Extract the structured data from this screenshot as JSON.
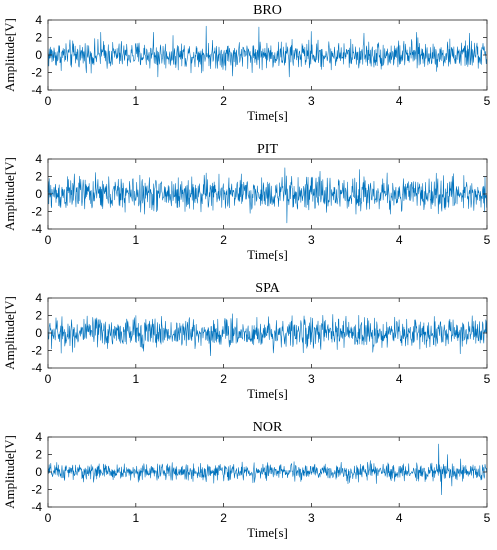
{
  "chart_data": [
    {
      "type": "line",
      "title": "BRO",
      "xlabel": "Time[s]",
      "ylabel": "Amplitude[V]",
      "xlim": [
        0,
        5
      ],
      "ylim": [
        -4,
        4
      ],
      "xticks": [
        0,
        1,
        2,
        3,
        4,
        5
      ],
      "yticks": [
        -4,
        -2,
        0,
        2,
        4
      ],
      "grid": false,
      "color": "#0072BD",
      "noise_amplitude": 0.9,
      "spikes": [
        {
          "x": 0.6,
          "y": 2.6
        },
        {
          "x": 1.2,
          "y": 2.6
        },
        {
          "x": 1.25,
          "y": -2.5
        },
        {
          "x": 1.8,
          "y": 3.3
        },
        {
          "x": 2.1,
          "y": -2.4
        },
        {
          "x": 2.4,
          "y": 3.2
        },
        {
          "x": 2.75,
          "y": -2.5
        },
        {
          "x": 3.0,
          "y": 2.7
        },
        {
          "x": 3.6,
          "y": 2.5
        },
        {
          "x": 4.2,
          "y": 2.6
        },
        {
          "x": 4.8,
          "y": 2.5
        }
      ]
    },
    {
      "type": "line",
      "title": "PIT",
      "xlabel": "Time[s]",
      "ylabel": "Amplitude[V]",
      "xlim": [
        0,
        5
      ],
      "ylim": [
        -4,
        4
      ],
      "xticks": [
        0,
        1,
        2,
        3,
        4,
        5
      ],
      "yticks": [
        -4,
        -2,
        0,
        2,
        4
      ],
      "grid": false,
      "color": "#0072BD",
      "noise_amplitude": 1.1,
      "spikes": [
        {
          "x": 0.3,
          "y": 2.3
        },
        {
          "x": 1.1,
          "y": -2.3
        },
        {
          "x": 1.8,
          "y": 2.4
        },
        {
          "x": 2.3,
          "y": -2.2
        },
        {
          "x": 2.7,
          "y": 3.0
        },
        {
          "x": 2.72,
          "y": -3.3
        },
        {
          "x": 3.1,
          "y": 2.6
        },
        {
          "x": 3.55,
          "y": 2.8
        },
        {
          "x": 3.9,
          "y": -2.3
        }
      ]
    },
    {
      "type": "line",
      "title": "SPA",
      "xlabel": "Time[s]",
      "ylabel": "Amplitude[V]",
      "xlim": [
        0,
        5
      ],
      "ylim": [
        -4,
        4
      ],
      "xticks": [
        0,
        1,
        2,
        3,
        4,
        5
      ],
      "yticks": [
        -4,
        -2,
        0,
        2,
        4
      ],
      "grid": false,
      "color": "#0072BD",
      "noise_amplitude": 1.0,
      "spikes": [
        {
          "x": 0.15,
          "y": -2.3
        },
        {
          "x": 1.0,
          "y": 2.0
        },
        {
          "x": 1.85,
          "y": -2.6
        },
        {
          "x": 2.1,
          "y": 2.2
        },
        {
          "x": 3.7,
          "y": -2.2
        },
        {
          "x": 4.4,
          "y": 1.9
        }
      ]
    },
    {
      "type": "line",
      "title": "NOR",
      "xlabel": "Time[s]",
      "ylabel": "Amplitude[V]",
      "xlim": [
        0,
        5
      ],
      "ylim": [
        -4,
        4
      ],
      "xticks": [
        0,
        1,
        2,
        3,
        4,
        5
      ],
      "yticks": [
        -4,
        -2,
        0,
        2,
        4
      ],
      "grid": false,
      "color": "#0072BD",
      "noise_amplitude": 0.55,
      "spikes": [
        {
          "x": 4.45,
          "y": 3.2
        },
        {
          "x": 4.48,
          "y": -2.6
        },
        {
          "x": 4.55,
          "y": 2.0
        },
        {
          "x": 4.6,
          "y": -1.6
        },
        {
          "x": 4.7,
          "y": 1.5
        }
      ]
    }
  ]
}
